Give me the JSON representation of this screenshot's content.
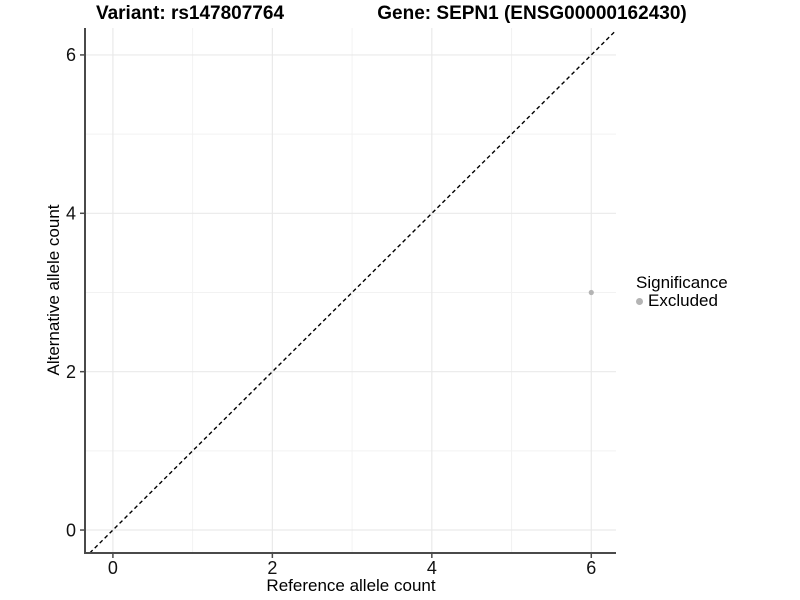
{
  "chart_data": {
    "type": "scatter",
    "titles": {
      "left": "Variant: rs147807764",
      "right": "Gene: SEPN1 (ENSG00000162430)"
    },
    "xlabel": "Reference allele count",
    "ylabel": "Alternative allele count",
    "xlim": [
      -0.35,
      6.31
    ],
    "ylim": [
      -0.29,
      6.34
    ],
    "xticks": [
      0,
      2,
      4,
      6
    ],
    "yticks": [
      0,
      2,
      4,
      6
    ],
    "minor_xticks": [
      1,
      3,
      5
    ],
    "minor_yticks": [
      1,
      3,
      5
    ],
    "grid": "major+minor",
    "identity_line": {
      "show": true,
      "dash": [
        4,
        3
      ],
      "color": "#000000"
    },
    "series": [
      {
        "name": "Excluded",
        "color": "#b4b4b4",
        "points": [
          {
            "x": 6,
            "y": 3
          }
        ]
      }
    ],
    "legend": {
      "position": "right",
      "title": "Significance",
      "items": [
        {
          "label": "Excluded",
          "color": "#b4b4b4"
        }
      ]
    },
    "colors": {
      "background": "#ffffff",
      "grid_major": "#e9e9e9",
      "grid_minor": "#f2f2f2",
      "axis_line": "#4a4a4a",
      "tick_mark": "#4a4a4a",
      "tick_label": "#111111",
      "title": "#000000"
    }
  }
}
